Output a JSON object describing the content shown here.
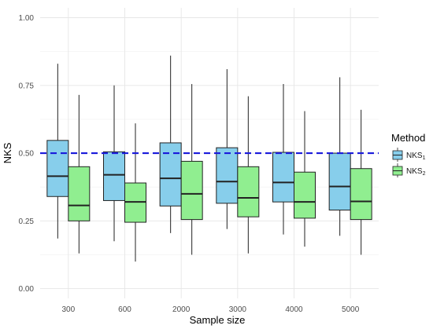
{
  "chart_data": {
    "type": "boxplot",
    "xlabel": "Sample size",
    "ylabel": "NKS",
    "categories": [
      "300",
      "600",
      "2000",
      "3000",
      "4000",
      "5000"
    ],
    "ylim": [
      -0.05,
      1.05
    ],
    "yticks": [
      0.0,
      0.25,
      0.5,
      0.75,
      1.0
    ],
    "ytick_labels": [
      "0.00",
      "0.25",
      "0.50",
      "0.75",
      "1.00"
    ],
    "grid": true,
    "legend": {
      "title": "Method",
      "position": "right",
      "entries": [
        {
          "base": "NKS",
          "sub": "1"
        },
        {
          "base": "NKS",
          "sub": "2"
        }
      ]
    },
    "series": [
      {
        "name": "NKS1",
        "color": "#87CEEB",
        "boxes": [
          {
            "min": 0.185,
            "q1": 0.34,
            "median": 0.415,
            "q3": 0.547,
            "max": 0.83
          },
          {
            "min": 0.175,
            "q1": 0.325,
            "median": 0.42,
            "q3": 0.505,
            "max": 0.75
          },
          {
            "min": 0.205,
            "q1": 0.305,
            "median": 0.407,
            "q3": 0.538,
            "max": 0.86
          },
          {
            "min": 0.22,
            "q1": 0.315,
            "median": 0.395,
            "q3": 0.52,
            "max": 0.81
          },
          {
            "min": 0.2,
            "q1": 0.32,
            "median": 0.392,
            "q3": 0.503,
            "max": 0.755
          },
          {
            "min": 0.195,
            "q1": 0.29,
            "median": 0.377,
            "q3": 0.5,
            "max": 0.78
          }
        ]
      },
      {
        "name": "NKS2",
        "color": "#90EE90",
        "boxes": [
          {
            "min": 0.13,
            "q1": 0.25,
            "median": 0.307,
            "q3": 0.45,
            "max": 0.715
          },
          {
            "min": 0.1,
            "q1": 0.245,
            "median": 0.32,
            "q3": 0.39,
            "max": 0.61
          },
          {
            "min": 0.125,
            "q1": 0.255,
            "median": 0.35,
            "q3": 0.47,
            "max": 0.755
          },
          {
            "min": 0.13,
            "q1": 0.265,
            "median": 0.335,
            "q3": 0.45,
            "max": 0.71
          },
          {
            "min": 0.155,
            "q1": 0.26,
            "median": 0.32,
            "q3": 0.43,
            "max": 0.655
          },
          {
            "min": 0.125,
            "q1": 0.255,
            "median": 0.322,
            "q3": 0.443,
            "max": 0.66
          }
        ]
      }
    ],
    "reference_line": {
      "y": 0.5,
      "color": "#1a1adb",
      "style": "dashed"
    },
    "grid_color": "#e6e6e6",
    "box_stroke": "#222222"
  }
}
